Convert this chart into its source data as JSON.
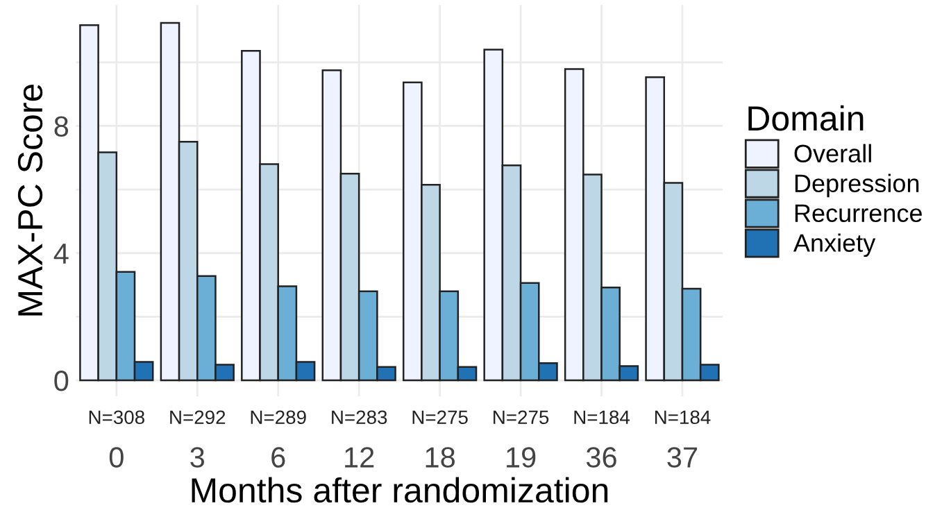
{
  "chart_data": {
    "type": "bar",
    "xlabel": "Months after randomization",
    "ylabel": "MAX-PC Score",
    "legend_title": "Domain",
    "categories": [
      "0",
      "3",
      "6",
      "12",
      "18",
      "19",
      "36",
      "37"
    ],
    "series": [
      {
        "name": "Overall",
        "color": "#eff3ff",
        "values": [
          11.17,
          11.24,
          10.36,
          9.75,
          9.37,
          10.4,
          9.79,
          9.53
        ]
      },
      {
        "name": "Depression",
        "color": "#bdd7e7",
        "values": [
          7.17,
          7.5,
          6.8,
          6.5,
          6.15,
          6.76,
          6.47,
          6.21
        ]
      },
      {
        "name": "Recurrence",
        "color": "#6baed6",
        "values": [
          3.41,
          3.28,
          2.96,
          2.8,
          2.8,
          3.06,
          2.92,
          2.88
        ]
      },
      {
        "name": "Anxiety",
        "color": "#2171b5",
        "values": [
          0.58,
          0.49,
          0.58,
          0.42,
          0.42,
          0.54,
          0.45,
          0.49
        ]
      }
    ],
    "ylim": [
      -0.5,
      11.8
    ],
    "yticks": [
      0,
      {
        "value": 2,
        "label": null
      },
      4,
      {
        "value": 6,
        "label": null
      },
      8,
      {
        "value": 10,
        "label": null
      }
    ],
    "grid": true,
    "legend": "right",
    "annotations": [
      "N=308",
      "N=292",
      "N=289",
      "N=283",
      "N=275",
      "N=275",
      "N=184",
      "N=184"
    ]
  }
}
